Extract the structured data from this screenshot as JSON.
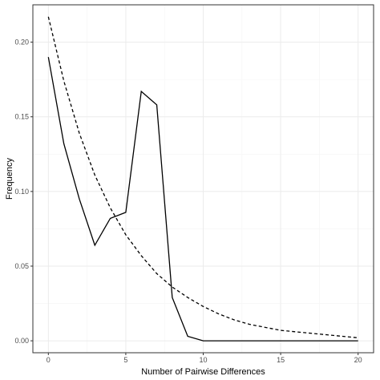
{
  "chart_data": {
    "type": "line",
    "xlabel": "Number of Pairwise Differences",
    "ylabel": "Frequency",
    "xlim": [
      -1,
      21
    ],
    "ylim": [
      -0.008,
      0.225
    ],
    "x_ticks": [
      0,
      5,
      10,
      15,
      20
    ],
    "y_ticks": [
      0.0,
      0.05,
      0.1,
      0.15,
      0.2
    ],
    "y_tick_labels": [
      "0.00",
      "0.05",
      "0.10",
      "0.15",
      "0.20"
    ],
    "grid": true,
    "legend": "none",
    "colors": {
      "line": "#000000",
      "grid": "#ebebeb",
      "border": "#333333"
    },
    "series": [
      {
        "style": "solid",
        "x": [
          0,
          1,
          2,
          3,
          4,
          5,
          6,
          7,
          8,
          9,
          10,
          11,
          12,
          13,
          14,
          15,
          16,
          17,
          18,
          19,
          20
        ],
        "values": [
          0.19,
          0.132,
          0.095,
          0.064,
          0.082,
          0.086,
          0.167,
          0.158,
          0.029,
          0.003,
          0.0,
          0.0,
          0.0,
          0.0,
          0.0,
          0.0,
          0.0,
          0.0,
          0.0,
          0.0,
          0.0
        ]
      },
      {
        "style": "dashed",
        "x": [
          0,
          1,
          2,
          3,
          4,
          5,
          6,
          7,
          8,
          9,
          10,
          11,
          12,
          13,
          14,
          15,
          16,
          17,
          18,
          19,
          20
        ],
        "values": [
          0.217,
          0.174,
          0.139,
          0.111,
          0.089,
          0.071,
          0.057,
          0.045,
          0.036,
          0.029,
          0.023,
          0.018,
          0.014,
          0.011,
          0.009,
          0.007,
          0.006,
          0.005,
          0.004,
          0.003,
          0.002
        ]
      }
    ]
  }
}
